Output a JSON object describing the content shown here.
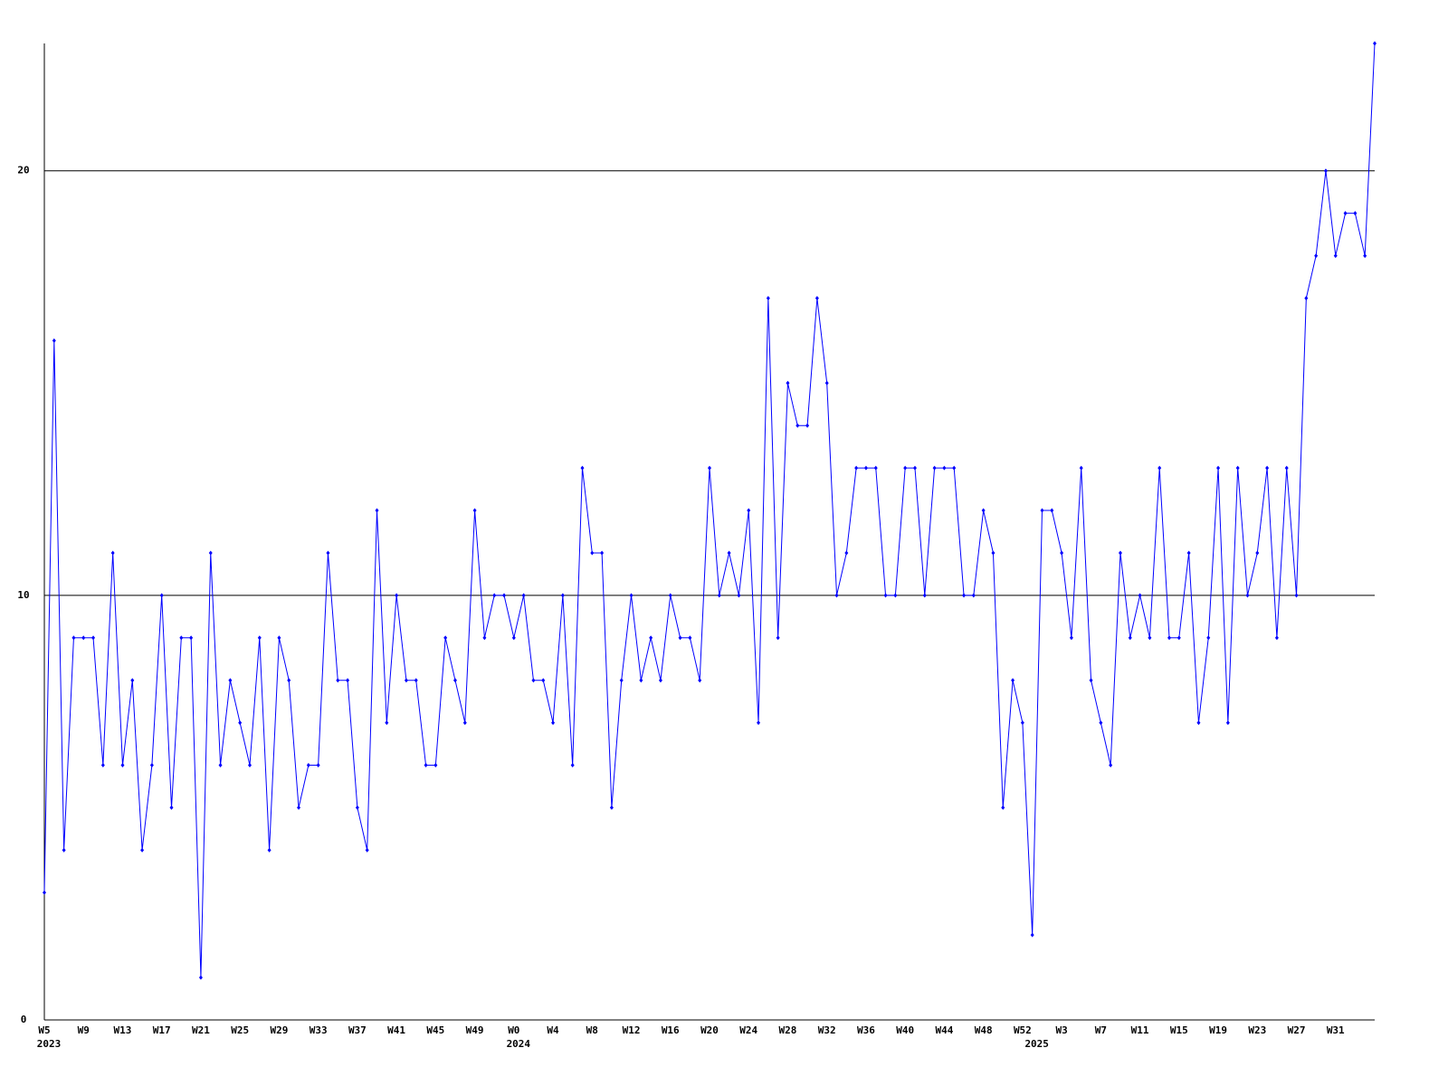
{
  "chart_data": {
    "type": "line",
    "categories": [
      "W5",
      null,
      null,
      null,
      "W9",
      null,
      null,
      null,
      "W13",
      null,
      null,
      null,
      "W17",
      null,
      null,
      null,
      "W21",
      null,
      null,
      null,
      "W25",
      null,
      null,
      null,
      "W29",
      null,
      null,
      null,
      "W33",
      null,
      null,
      null,
      "W37",
      null,
      null,
      null,
      "W41",
      null,
      null,
      null,
      "W45",
      null,
      null,
      null,
      "W49",
      null,
      null,
      null,
      "W0",
      null,
      null,
      null,
      "W4",
      null,
      null,
      null,
      "W8",
      null,
      null,
      null,
      "W12",
      null,
      null,
      null,
      "W16",
      null,
      null,
      null,
      "W20",
      null,
      null,
      null,
      "W24",
      null,
      null,
      null,
      "W28",
      null,
      null,
      null,
      "W32",
      null,
      null,
      null,
      "W36",
      null,
      null,
      null,
      "W40",
      null,
      null,
      null,
      "W44",
      null,
      null,
      null,
      "W48",
      null,
      null,
      null,
      "W52",
      null,
      null,
      null,
      "W3",
      null,
      null,
      null,
      "W7",
      null,
      null,
      null,
      "W11",
      null,
      null,
      null,
      "W15",
      null,
      null,
      null,
      "W19",
      null,
      null,
      null,
      "W23",
      null,
      null,
      null,
      "W27",
      null,
      null,
      null,
      "W31",
      null,
      null,
      null,
      null
    ],
    "years": [
      "2023",
      null,
      null,
      null,
      null,
      null,
      null,
      null,
      null,
      null,
      null,
      null,
      null,
      null,
      null,
      null,
      null,
      null,
      null,
      null,
      null,
      null,
      null,
      null,
      null,
      null,
      null,
      null,
      null,
      null,
      null,
      null,
      null,
      null,
      null,
      null,
      null,
      null,
      null,
      null,
      null,
      null,
      null,
      null,
      null,
      null,
      null,
      null,
      "2024",
      null,
      null,
      null,
      null,
      null,
      null,
      null,
      null,
      null,
      null,
      null,
      null,
      null,
      null,
      null,
      null,
      null,
      null,
      null,
      null,
      null,
      null,
      null,
      null,
      null,
      null,
      null,
      null,
      null,
      null,
      null,
      null,
      null,
      null,
      null,
      null,
      null,
      null,
      null,
      null,
      null,
      null,
      null,
      null,
      null,
      null,
      null,
      null,
      null,
      null,
      null,
      null,
      "2025",
      null,
      null,
      null,
      null,
      null,
      null,
      null,
      null,
      null,
      null,
      null,
      null,
      null,
      null,
      null,
      null,
      null,
      null,
      null,
      null,
      null,
      null,
      null,
      null,
      null,
      null,
      null,
      null,
      null,
      null,
      null,
      null,
      null,
      null,
      null
    ],
    "values": [
      3,
      16,
      4,
      9,
      9,
      9,
      6,
      11,
      6,
      8,
      4,
      6,
      10,
      5,
      9,
      9,
      1,
      11,
      6,
      8,
      7,
      6,
      9,
      4,
      9,
      8,
      5,
      6,
      6,
      11,
      8,
      8,
      5,
      4,
      12,
      7,
      10,
      8,
      8,
      6,
      6,
      9,
      8,
      7,
      12,
      9,
      10,
      10,
      9,
      10,
      8,
      8,
      7,
      10,
      6,
      13,
      11,
      11,
      5,
      8,
      10,
      8,
      9,
      8,
      10,
      9,
      9,
      8,
      13,
      10,
      11,
      10,
      12,
      7,
      17,
      9,
      15,
      14,
      14,
      17,
      15,
      10,
      11,
      13,
      13,
      13,
      10,
      10,
      13,
      13,
      10,
      13,
      13,
      13,
      10,
      10,
      12,
      11,
      5,
      8,
      7,
      2,
      12,
      12,
      11,
      9,
      13,
      8,
      7,
      6,
      11,
      9,
      10,
      9,
      13,
      9,
      9,
      11,
      7,
      9,
      13,
      7,
      13,
      10,
      11,
      13,
      9,
      13,
      10,
      17,
      18,
      20,
      18,
      19,
      19,
      18,
      23
    ],
    "color": "#0000ff",
    "ylim": [
      0,
      23
    ],
    "yticks": [
      0,
      10,
      20
    ],
    "grid": true
  }
}
